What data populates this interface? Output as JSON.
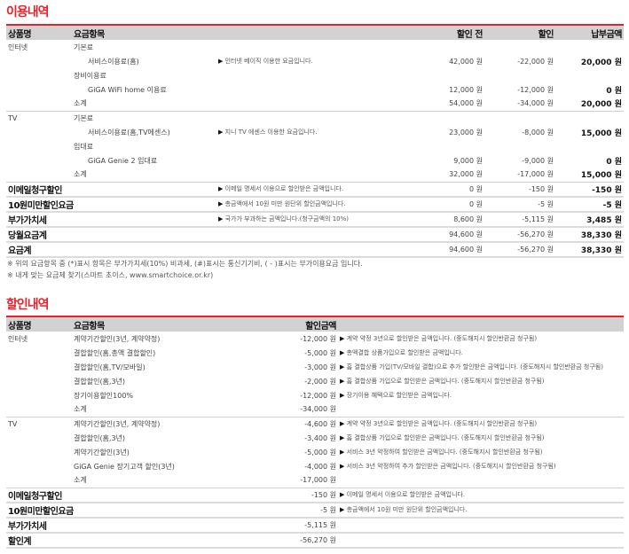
{
  "usage": {
    "title": "이용내역",
    "headers": [
      "상품명",
      "요금항목",
      "할인 전",
      "할인",
      "납부금액"
    ],
    "internet": {
      "product": "인터넷",
      "rows": [
        {
          "item": "기본료"
        },
        {
          "item": "서비스이용료(홈)",
          "desc": "인터넷 베이직 이용한 요금입니다.",
          "pre": "42,000 원",
          "disc": "-22,000 원",
          "pay": "20,000 원"
        },
        {
          "item": "장비이용료"
        },
        {
          "item": "GiGA WiFi home 이용료",
          "pre": "12,000 원",
          "disc": "-12,000 원",
          "pay": "0 원"
        },
        {
          "item": "소계",
          "pre": "54,000 원",
          "disc": "-34,000 원",
          "pay": "20,000 원"
        }
      ]
    },
    "tv": {
      "product": "TV",
      "rows": [
        {
          "item": "기본료"
        },
        {
          "item": "서비스이용료(홈,TV에센스)",
          "desc": "지니 TV 에센스 이용한 요금입니다.",
          "pre": "23,000 원",
          "disc": "-8,000 원",
          "pay": "15,000 원"
        },
        {
          "item": "임대료"
        },
        {
          "item": "GiGA Genie 2 임대료",
          "pre": "9,000 원",
          "disc": "-9,000 원",
          "pay": "0 원"
        },
        {
          "item": "소계",
          "pre": "32,000 원",
          "disc": "-17,000 원",
          "pay": "15,000 원"
        }
      ]
    },
    "totals": [
      {
        "label": "이메일청구할인",
        "desc": "이메일 명세서 이용으로 할인받은 금액입니다.",
        "pre": "0 원",
        "disc": "-150 원",
        "pay": "-150 원"
      },
      {
        "label": "10원미만할인요금",
        "desc": "총금액에서 10원 미만 원단위 할인금액입니다.",
        "pre": "0 원",
        "disc": "-5 원",
        "pay": "-5 원"
      },
      {
        "label": "부가가치세",
        "desc": "국가가 부과하는 금액입니다.(청구금액의 10%)",
        "pre": "8,600 원",
        "disc": "-5,115 원",
        "pay": "3,485 원"
      },
      {
        "label": "당월요금계",
        "pre": "94,600 원",
        "disc": "-56,270 원",
        "pay": "38,330 원"
      },
      {
        "label": "요금계",
        "pre": "94,600 원",
        "disc": "-56,270 원",
        "pay": "38,330 원"
      }
    ],
    "notes": [
      "※ 위의 요금항목 중 (*)표시 항목은 부가가치세(10%) 비과세, (#)표시는 통신기기비, ( - )표시는 부가이용요금 입니다.",
      "※ 내게 맞는 요금제 찾기(스마트 초이스, www.smartchoice.or.kr)"
    ]
  },
  "discount": {
    "title": "할인내역",
    "headers": [
      "상품명",
      "요금항목",
      "할인금액"
    ],
    "internet": {
      "product": "인터넷",
      "rows": [
        {
          "item": "계약기간할인(3년, 계약약정)",
          "amt": "-12,000 원",
          "desc": "계약 약정 3년으로 할인받은 금액입니다. (중도해지시 할인반환금 청구됨)"
        },
        {
          "item": "결합할인(홈,총액 결합할인)",
          "amt": "-5,000 원",
          "desc": "총액결합 상품가입으로 할인받은 금액입니다."
        },
        {
          "item": "결합할인(홈,TV/모바일)",
          "amt": "-3,000 원",
          "desc": "홈 결합상품 가입(TV/모바일 결합)으로 추가 할인받은 금액입니다. (중도해지시 할인반환금 청구됨)"
        },
        {
          "item": "결합할인(홈,3년)",
          "amt": "-2,000 원",
          "desc": "홈 결합상품 가입으로 할인받은 금액입니다. (중도해지시 할인반환금 청구됨)"
        },
        {
          "item": "장기이용할인100%",
          "amt": "-12,000 원",
          "desc": "장기이용 혜택으로 할인받은 금액입니다."
        },
        {
          "item": "소계",
          "amt": "-34,000 원"
        }
      ]
    },
    "tv": {
      "product": "TV",
      "rows": [
        {
          "item": "계약기간할인(3년, 계약약정)",
          "amt": "-4,600 원",
          "desc": "계약 약정 3년으로 할인받은 금액입니다. (중도해지시 할인반환금 청구됨)"
        },
        {
          "item": "결합할인(홈,3년)",
          "amt": "-3,400 원",
          "desc": "홈 결합상품 가입으로 할인받은 금액입니다. (중도해지시 할인반환금 청구됨)"
        },
        {
          "item": "계약기간할인(3년)",
          "amt": "-5,000 원",
          "desc": "서비스 3년 약정하여 할인받은 금액입니다. (중도해지시 할인반환금 청구됨)"
        },
        {
          "item": "GiGA Genie 장기고객 할인(3년)",
          "amt": "-4,000 원",
          "desc": "서비스 3년 약정하여 추가 할인받은 금액입니다. (중도해지시 할인반환금 청구됨)"
        },
        {
          "item": "소계",
          "amt": "-17,000 원"
        }
      ]
    },
    "totals": [
      {
        "label": "이메일청구할인",
        "amt": "-150 원",
        "desc": "이메일 명세서 이용으로 할인받은 금액입니다."
      },
      {
        "label": "10원미만할인요금",
        "amt": "-5 원",
        "desc": "총금액에서 10원 미만 원단위 할인금액입니다."
      },
      {
        "label": "부가가치세",
        "amt": "-5,115 원"
      },
      {
        "label": "할인계",
        "amt": "-56,270 원"
      }
    ]
  }
}
